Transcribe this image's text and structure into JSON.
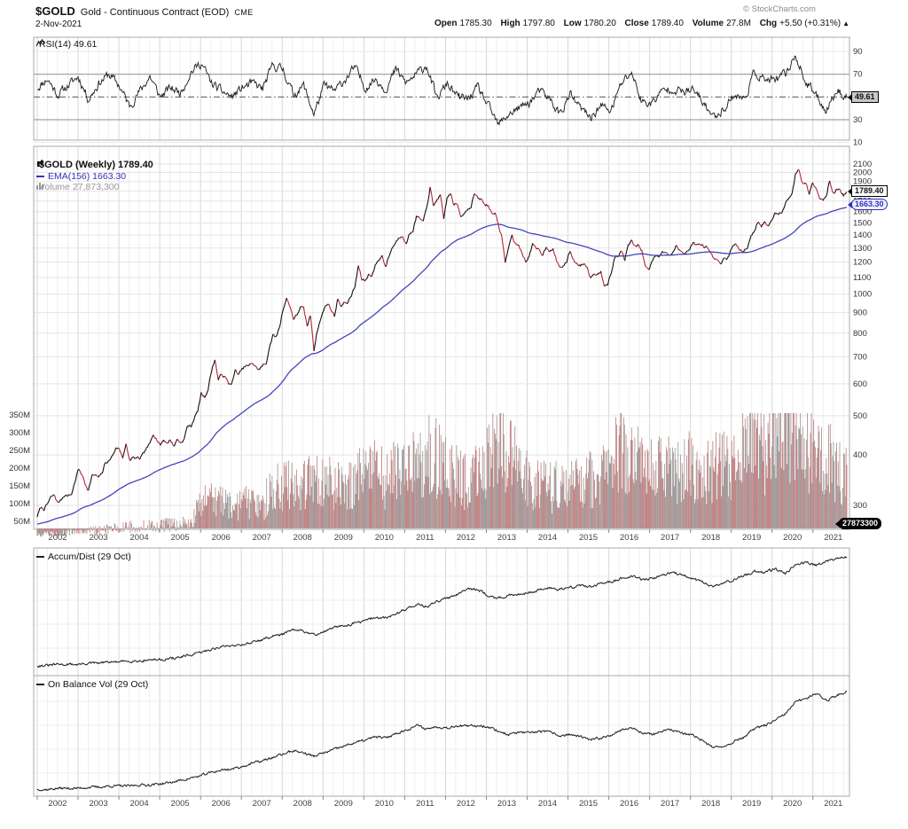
{
  "header": {
    "symbol": "$GOLD",
    "description": "Gold - Continuous Contract (EOD)",
    "exchange": "CME",
    "date": "2-Nov-2021",
    "copyright": "© StockCharts.com",
    "quote": {
      "open_label": "Open",
      "open": "1785.30",
      "high_label": "High",
      "high": "1797.80",
      "low_label": "Low",
      "low": "1780.20",
      "close_label": "Close",
      "close": "1789.40",
      "volume_label": "Volume",
      "volume": "27.8M",
      "chg_label": "Chg",
      "chg": "+5.50 (+0.31%)",
      "arrow": "▲"
    }
  },
  "legends": {
    "rsi": "RSI(14) 49.61",
    "symbol": "$GOLD (Weekly) 1789.40",
    "ema": "EMA(156) 1663.30",
    "volume": "Volume 27,873,300",
    "accum_dist": "Accum/Dist (29 Oct)",
    "obv": "On Balance Vol (29 Oct)"
  },
  "value_boxes": {
    "rsi": "49.61",
    "price": "1789.40",
    "ema": "1663.30",
    "volume": "27873300"
  },
  "axes": {
    "years": [
      "2002",
      "2003",
      "2004",
      "2005",
      "2006",
      "2007",
      "2008",
      "2009",
      "2010",
      "2011",
      "2012",
      "2013",
      "2014",
      "2015",
      "2016",
      "2017",
      "2018",
      "2019",
      "2020",
      "2021"
    ],
    "price_ticks": [
      2100,
      2000,
      1900,
      1800,
      1700,
      1600,
      1500,
      1400,
      1300,
      1200,
      1100,
      1000,
      900,
      800,
      700,
      600,
      500,
      400,
      300
    ],
    "rsi_ticks": [
      90,
      70,
      30,
      10
    ],
    "volume_ticks": [
      "350M",
      "300M",
      "250M",
      "200M",
      "150M",
      "100M",
      "50M"
    ]
  },
  "colors": {
    "up": "#111111",
    "down": "#bb2233",
    "ema": "#4444bb",
    "vol_red": "#c08383",
    "vol_gray": "#9a9a9a",
    "grid": "#e5e5e5",
    "grid_year": "#d7d7d7",
    "border": "#a9a9a9",
    "text": "#333333",
    "muted": "#999999",
    "line": "#222222"
  },
  "chart_data": {
    "type": "multi-panel-financial",
    "title": "$GOLD Gold - Continuous Contract (EOD) CME, weekly, 2002-2021",
    "x_range_years": [
      2002.0,
      2021.83
    ],
    "panels": [
      {
        "id": "rsi",
        "type": "line",
        "label": "RSI(14)",
        "last_value": 49.61,
        "ylim": [
          10,
          100
        ],
        "levels": {
          "overbought": 70,
          "midline": 50,
          "oversold": 30
        },
        "quarterly_values": [
          58,
          66,
          52,
          60,
          68,
          48,
          62,
          70,
          60,
          42,
          55,
          68,
          50,
          58,
          54,
          72,
          80,
          62,
          55,
          50,
          58,
          62,
          57,
          78,
          74,
          52,
          60,
          35,
          60,
          55,
          65,
          76,
          58,
          66,
          57,
          74,
          62,
          70,
          78,
          48,
          62,
          50,
          48,
          58,
          42,
          25,
          35,
          40,
          45,
          55,
          48,
          35,
          52,
          40,
          32,
          42,
          38,
          62,
          72,
          45,
          45,
          55,
          58,
          54,
          56,
          45,
          32,
          40,
          52,
          48,
          72,
          65,
          64,
          70,
          87,
          62,
          52,
          38,
          56,
          50
        ]
      },
      {
        "id": "price",
        "type": "candlestick",
        "label": "$GOLD Weekly close",
        "scale": "log",
        "ylim": [
          270,
          2150
        ],
        "last_value": 1789.4,
        "monthly_close": [
          282,
          296,
          294,
          302,
          314,
          318,
          304,
          310,
          319,
          317,
          319,
          342,
          368,
          359,
          340,
          328,
          355,
          356,
          351,
          360,
          384,
          386,
          398,
          416,
          414,
          396,
          423,
          388,
          393,
          392,
          391,
          400,
          415,
          425,
          453,
          438,
          423,
          436,
          429,
          435,
          421,
          437,
          429,
          437,
          473,
          470,
          495,
          513,
          568,
          556,
          582,
          644,
          690,
          613,
          634,
          623,
          599,
          603,
          646,
          632,
          651,
          664,
          663,
          677,
          659,
          650,
          665,
          672,
          743,
          789,
          783,
          834,
          923,
          975,
          933,
          871,
          885,
          930,
          918,
          833,
          884,
          730,
          814,
          869,
          919,
          952,
          916,
          883,
          975,
          934,
          953,
          955,
          995,
          1040,
          1175,
          1087,
          1078,
          1118,
          1115,
          1179,
          1215,
          1244,
          1169,
          1246,
          1307,
          1346,
          1383,
          1405,
          1327,
          1411,
          1439,
          1556,
          1536,
          1505,
          1628,
          1840,
          1640,
          1722,
          1746,
          1531,
          1737,
          1770,
          1662,
          1664,
          1558,
          1598,
          1622,
          1648,
          1776,
          1719,
          1714,
          1664,
          1660,
          1588,
          1598,
          1469,
          1394,
          1192,
          1312,
          1396,
          1326,
          1324,
          1253,
          1205,
          1244,
          1326,
          1291,
          1288,
          1250,
          1315,
          1285,
          1287,
          1211,
          1164,
          1175,
          1199,
          1283,
          1213,
          1187,
          1180,
          1191,
          1172,
          1095,
          1135,
          1114,
          1142,
          1061,
          1060,
          1118,
          1234,
          1237,
          1285,
          1215,
          1322,
          1351,
          1309,
          1322,
          1277,
          1178,
          1146,
          1212,
          1255,
          1244,
          1266,
          1275,
          1242,
          1267,
          1311,
          1283,
          1271,
          1275,
          1291,
          1345,
          1318,
          1323,
          1315,
          1305,
          1252,
          1224,
          1206,
          1187,
          1215,
          1226,
          1281,
          1321,
          1313,
          1292,
          1283,
          1305,
          1409,
          1428,
          1520,
          1472,
          1511,
          1464,
          1517,
          1589,
          1586,
          1583,
          1686,
          1730,
          1781,
          1976,
          2035,
          1887,
          1879,
          1778,
          1895,
          1848,
          1734,
          1708,
          1768,
          1907,
          1770,
          1814,
          1815,
          1757,
          1789
        ],
        "overlays": [
          {
            "id": "ema",
            "type": "ema",
            "period_weeks": 156,
            "last_value": 1663.3
          }
        ]
      },
      {
        "id": "volume",
        "type": "bar",
        "label": "Volume",
        "unit": "millions",
        "last_value": 27873300,
        "ylim": [
          0,
          380
        ],
        "quarterly_values": [
          12,
          14,
          15,
          18,
          22,
          25,
          24,
          28,
          30,
          34,
          32,
          38,
          36,
          40,
          42,
          50,
          90,
          120,
          95,
          85,
          95,
          105,
          100,
          130,
          150,
          140,
          160,
          190,
          160,
          150,
          140,
          170,
          170,
          185,
          160,
          190,
          200,
          210,
          230,
          220,
          180,
          170,
          160,
          175,
          210,
          280,
          230,
          190,
          160,
          150,
          140,
          150,
          150,
          160,
          170,
          180,
          210,
          240,
          220,
          200,
          190,
          200,
          180,
          190,
          200,
          180,
          190,
          210,
          220,
          250,
          280,
          240,
          280,
          310,
          300,
          260,
          240,
          220,
          200,
          180
        ]
      },
      {
        "id": "accum_dist",
        "type": "line",
        "label": "Accum/Dist",
        "asof": "29 Oct",
        "ylim_pct": [
          0,
          100
        ],
        "quarterly_values_pct": [
          4,
          4,
          5,
          5,
          5,
          6,
          6,
          7,
          7,
          8,
          8,
          9,
          9,
          10,
          11,
          13,
          15,
          18,
          20,
          21,
          22,
          24,
          26,
          29,
          31,
          34,
          33,
          30,
          33,
          36,
          38,
          40,
          42,
          45,
          44,
          48,
          52,
          56,
          54,
          58,
          61,
          65,
          70,
          68,
          64,
          61,
          63,
          65,
          66,
          68,
          70,
          69,
          70,
          72,
          71,
          73,
          75,
          78,
          80,
          77,
          78,
          81,
          83,
          80,
          78,
          74,
          71,
          74,
          77,
          80,
          84,
          83,
          86,
          82,
          90,
          92,
          89,
          93,
          95,
          96
        ]
      },
      {
        "id": "obv",
        "type": "line",
        "label": "On Balance Vol",
        "asof": "29 Oct",
        "ylim_pct": [
          0,
          100
        ],
        "quarterly_values_pct": [
          2,
          2,
          3,
          3,
          3,
          4,
          4,
          5,
          5,
          5,
          6,
          6,
          7,
          8,
          10,
          12,
          14,
          17,
          19,
          20,
          22,
          25,
          27,
          30,
          33,
          36,
          34,
          31,
          34,
          37,
          40,
          43,
          45,
          48,
          47,
          51,
          54,
          58,
          55,
          57,
          56,
          58,
          57,
          58,
          57,
          53,
          50,
          52,
          51,
          53,
          52,
          49,
          50,
          48,
          45,
          47,
          50,
          54,
          56,
          52,
          50,
          53,
          54,
          51,
          49,
          45,
          38,
          40,
          44,
          48,
          55,
          58,
          62,
          68,
          78,
          82,
          86,
          80,
          84,
          88
        ]
      }
    ]
  }
}
